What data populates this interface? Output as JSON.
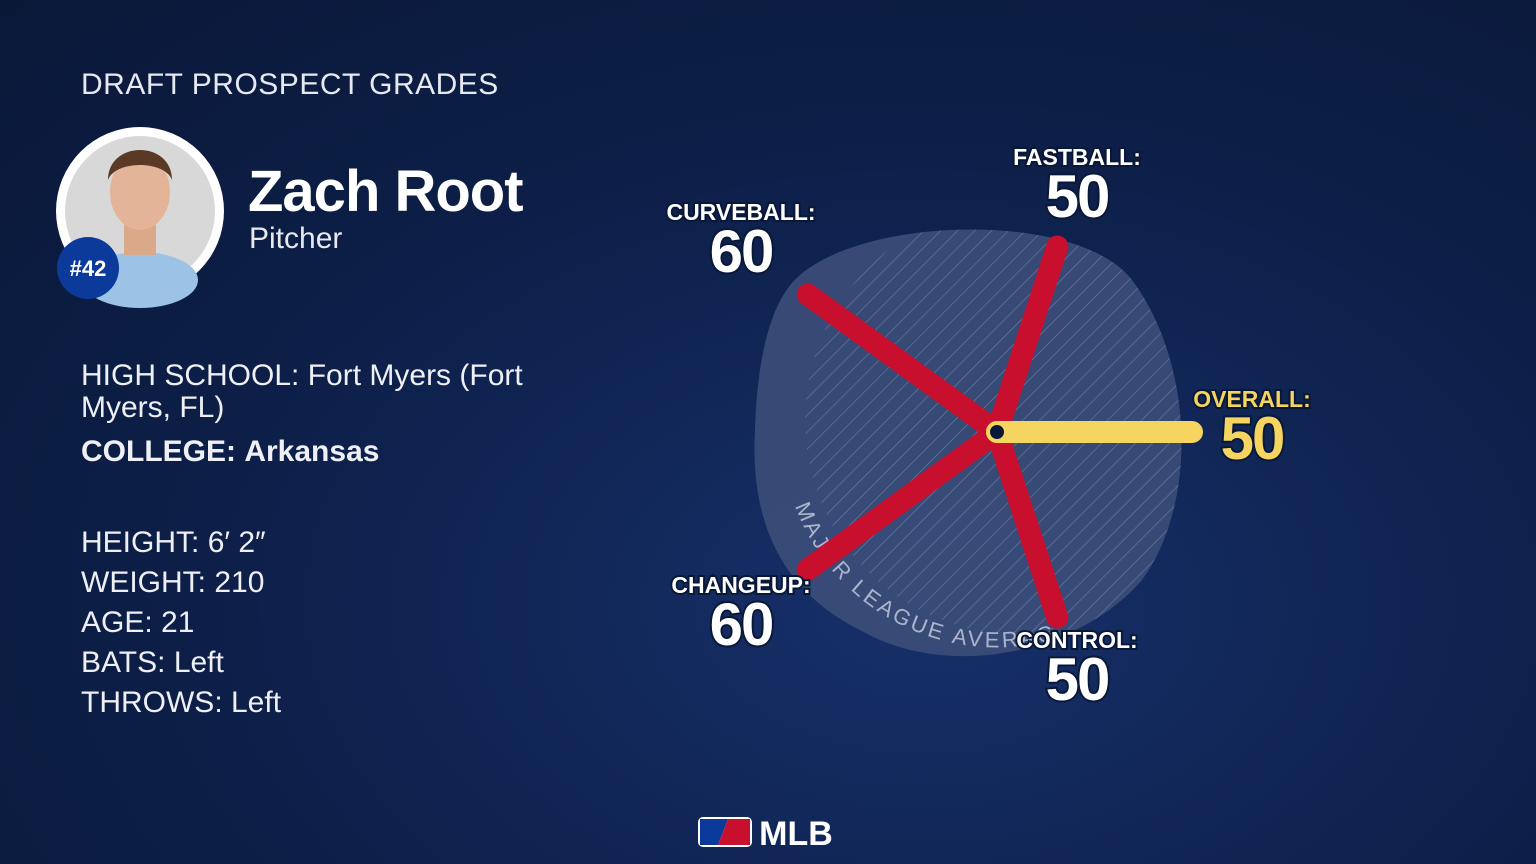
{
  "header": {
    "title": "DRAFT PROSPECT GRADES"
  },
  "player": {
    "name": "Zach Root",
    "position": "Pitcher",
    "number": "#42"
  },
  "school": [
    {
      "label": "HIGH SCHOOL:",
      "value": "Fort Myers (Fort Myers, FL)"
    },
    {
      "label": "COLLEGE:",
      "value": "Arkansas"
    }
  ],
  "stats": [
    {
      "label": "HEIGHT:",
      "value": "6′ 2″"
    },
    {
      "label": "WEIGHT:",
      "value": "210"
    },
    {
      "label": "AGE:",
      "value": "21"
    },
    {
      "label": "BATS:",
      "value": "Left"
    },
    {
      "label": "THROWS:",
      "value": "Left"
    }
  ],
  "footer": {
    "logo": "MLB"
  },
  "chart_data": {
    "type": "radial",
    "annotation": "MAJOR LEAGUE AVERAGE",
    "categories": [
      "OVERALL:",
      "CONTROL:",
      "CHANGEUP:",
      "CURVEBALL:",
      "FASTBALL:"
    ],
    "values": [
      50,
      50,
      60,
      60,
      50
    ],
    "colors": [
      "#f5d460",
      "#c8102e",
      "#c8102e",
      "#c8102e",
      "#c8102e"
    ],
    "rlim": [
      0,
      80
    ]
  }
}
